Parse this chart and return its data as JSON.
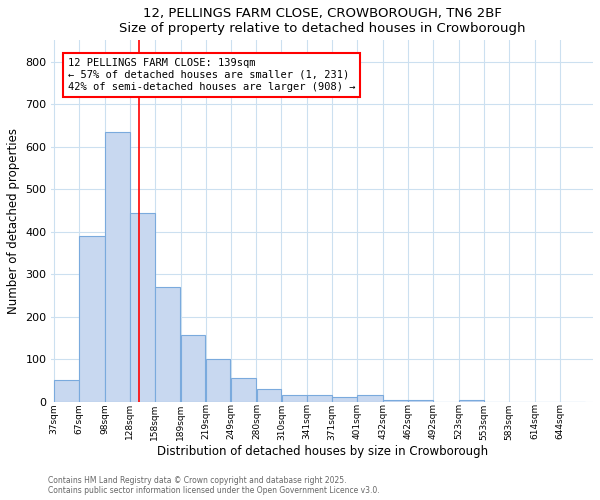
{
  "title": "12, PELLINGS FARM CLOSE, CROWBOROUGH, TN6 2BF",
  "subtitle": "Size of property relative to detached houses in Crowborough",
  "xlabel": "Distribution of detached houses by size in Crowborough",
  "ylabel": "Number of detached properties",
  "bar_labels": [
    "37sqm",
    "67sqm",
    "98sqm",
    "128sqm",
    "158sqm",
    "189sqm",
    "219sqm",
    "249sqm",
    "280sqm",
    "310sqm",
    "341sqm",
    "371sqm",
    "401sqm",
    "432sqm",
    "462sqm",
    "492sqm",
    "523sqm",
    "553sqm",
    "583sqm",
    "614sqm",
    "644sqm"
  ],
  "bar_heights": [
    50,
    390,
    635,
    445,
    270,
    157,
    100,
    55,
    30,
    17,
    17,
    10,
    15,
    5,
    5,
    0,
    5,
    0,
    0,
    0,
    0
  ],
  "bar_color": "#c8d8f0",
  "bar_edge_color": "#7aaadd",
  "ylim": [
    0,
    850
  ],
  "yticks": [
    0,
    100,
    200,
    300,
    400,
    500,
    600,
    700,
    800
  ],
  "property_line_x": 139,
  "property_line_color": "red",
  "annotation_line1": "12 PELLINGS FARM CLOSE: 139sqm",
  "annotation_line2": "← 57% of detached houses are smaller (1, 231)",
  "annotation_line3": "42% of semi-detached houses are larger (908) →",
  "annotation_box_color": "red",
  "footer_text": "Contains HM Land Registry data © Crown copyright and database right 2025.\nContains public sector information licensed under the Open Government Licence v3.0.",
  "bg_color": "#ffffff",
  "grid_color": "#cce0f0",
  "bin_edges": [
    37,
    67,
    98,
    128,
    158,
    189,
    219,
    249,
    280,
    310,
    341,
    371,
    401,
    432,
    462,
    492,
    523,
    553,
    583,
    614,
    644,
    674
  ]
}
